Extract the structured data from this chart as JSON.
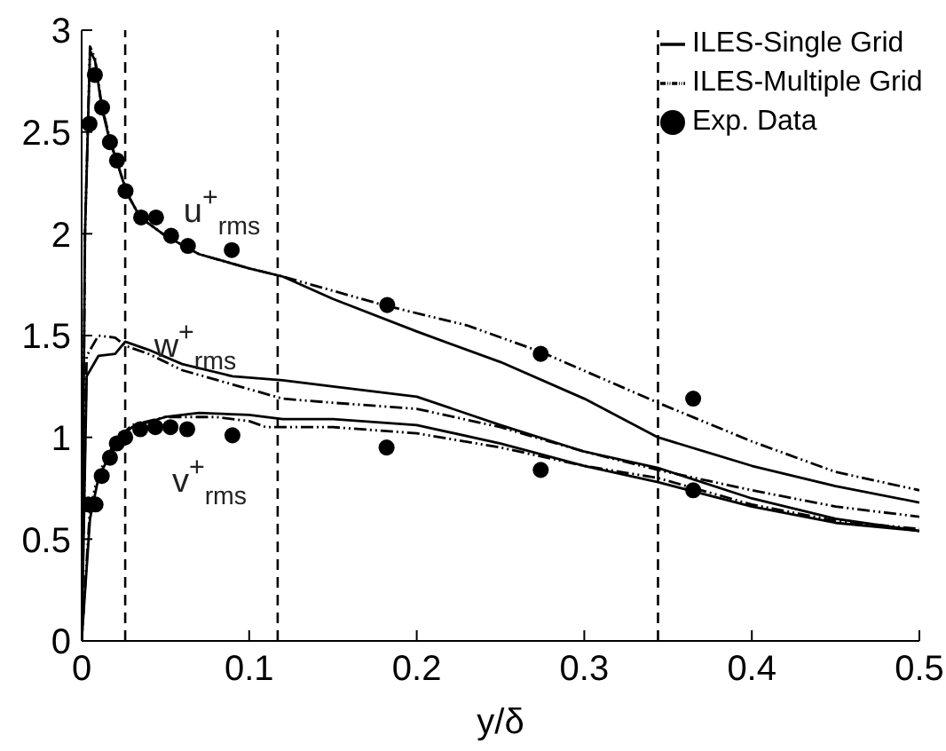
{
  "chart_data": {
    "type": "line",
    "xlabel": "y/δ",
    "xlim": [
      0,
      0.5
    ],
    "xticks": [
      0,
      0.1,
      0.2,
      0.3,
      0.4,
      0.5
    ],
    "ylim": [
      0,
      3
    ],
    "yticks": [
      0,
      0.5,
      1,
      1.5,
      2,
      2.5,
      3
    ],
    "grid": false,
    "legend": "top right",
    "series": [
      {
        "name": "ILES-Single Grid",
        "type": "line",
        "color": "#000000",
        "line_style": "solid",
        "marker": "none",
        "x": [
          0,
          0.002,
          0.005,
          0.008,
          0.012,
          0.017,
          0.022,
          0.027,
          0.035,
          0.05,
          0.07,
          0.1,
          0.12,
          0.15,
          0.2,
          0.25,
          0.3,
          0.344,
          0.4,
          0.45,
          0.5
        ],
        "values": [
          0,
          2.0,
          2.9,
          2.85,
          2.62,
          2.45,
          2.33,
          2.2,
          2.08,
          1.99,
          1.9,
          1.83,
          1.79,
          1.68,
          1.52,
          1.37,
          1.19,
          1.0,
          0.86,
          0.76,
          0.68
        ]
      },
      {
        "name": "ILES-Multiple Grid",
        "type": "line",
        "color": "#000000",
        "line_style": "dashed",
        "marker": "none",
        "x": [
          0,
          0.002,
          0.005,
          0.008,
          0.012,
          0.017,
          0.022,
          0.027,
          0.035,
          0.05,
          0.07,
          0.1,
          0.12,
          0.15,
          0.18,
          0.23,
          0.274,
          0.344,
          0.4,
          0.45,
          0.5
        ],
        "values": [
          0,
          2.0,
          2.92,
          2.86,
          2.63,
          2.46,
          2.33,
          2.2,
          2.08,
          1.99,
          1.9,
          1.83,
          1.79,
          1.72,
          1.65,
          1.55,
          1.42,
          1.17,
          0.98,
          0.83,
          0.74
        ]
      },
      {
        "name": "Exp. Data",
        "type": "scatter",
        "color": "#000000",
        "marker": "circle",
        "x": [
          0.0047,
          0.0079,
          0.0122,
          0.0169,
          0.0211,
          0.0262,
          0.0355,
          0.0444,
          0.0534,
          0.0634,
          0.0896,
          0.1824,
          0.274,
          0.365,
          0.004,
          0.0083,
          0.012,
          0.0169,
          0.021,
          0.026,
          0.035,
          0.044,
          0.053,
          0.063,
          0.09,
          0.182,
          0.274,
          0.365
        ],
        "values": [
          2.54,
          2.78,
          2.62,
          2.45,
          2.36,
          2.21,
          2.08,
          2.08,
          1.99,
          1.94,
          1.92,
          1.65,
          1.41,
          1.19,
          0.67,
          0.67,
          0.81,
          0.9,
          0.97,
          1.0,
          1.04,
          1.05,
          1.05,
          1.04,
          1.01,
          0.95,
          0.84,
          0.74
        ]
      },
      {
        "color": "#000000",
        "line_style": "solid",
        "marker": "none",
        "x": [
          0,
          0.003,
          0.01,
          0.02,
          0.026,
          0.04,
          0.06,
          0.09,
          0.12,
          0.15,
          0.2,
          0.25,
          0.3,
          0.344,
          0.4,
          0.45,
          0.5
        ],
        "values": [
          0,
          1.3,
          1.4,
          1.41,
          1.47,
          1.43,
          1.36,
          1.3,
          1.28,
          1.25,
          1.2,
          1.06,
          0.93,
          0.85,
          0.7,
          0.6,
          0.54
        ]
      },
      {
        "color": "#000000",
        "line_style": "dashed",
        "marker": "none",
        "x": [
          0,
          0.003,
          0.01,
          0.02,
          0.026,
          0.04,
          0.06,
          0.09,
          0.12,
          0.15,
          0.2,
          0.25,
          0.3,
          0.344,
          0.4,
          0.45,
          0.5
        ],
        "values": [
          0,
          1.4,
          1.5,
          1.49,
          1.45,
          1.41,
          1.33,
          1.26,
          1.19,
          1.17,
          1.14,
          1.05,
          0.93,
          0.84,
          0.74,
          0.66,
          0.61
        ]
      },
      {
        "color": "#000000",
        "line_style": "solid",
        "marker": "none",
        "x": [
          0,
          0.005,
          0.01,
          0.02,
          0.03,
          0.05,
          0.07,
          0.1,
          0.12,
          0.15,
          0.2,
          0.25,
          0.3,
          0.344,
          0.4,
          0.45,
          0.5
        ],
        "values": [
          0,
          0.6,
          0.8,
          0.97,
          1.05,
          1.1,
          1.12,
          1.11,
          1.09,
          1.09,
          1.06,
          0.97,
          0.86,
          0.78,
          0.66,
          0.58,
          0.54
        ]
      },
      {
        "color": "#000000",
        "line_style": "dashed",
        "marker": "none",
        "x": [
          0,
          0.005,
          0.01,
          0.02,
          0.03,
          0.05,
          0.08,
          0.1,
          0.11,
          0.15,
          0.2,
          0.25,
          0.3,
          0.344,
          0.4,
          0.45,
          0.5
        ],
        "values": [
          0,
          0.65,
          0.82,
          0.98,
          1.06,
          1.1,
          1.1,
          1.08,
          1.05,
          1.05,
          1.02,
          0.95,
          0.86,
          0.8,
          0.67,
          0.59,
          0.55
        ]
      }
    ],
    "ref_lines": [
      {
        "axis": "x",
        "value": 0.026,
        "color": "#000000",
        "line_style": "dashed"
      },
      {
        "axis": "x",
        "value": 0.117,
        "color": "#000000",
        "line_style": "dashed"
      },
      {
        "axis": "x",
        "value": 0.344,
        "color": "#000000",
        "line_style": "dashed"
      }
    ],
    "annotations": [
      "u$^{+}$$_{rms}$",
      "w$^{+}$$_{rms}$",
      "v$^{+}$$_{rms}$"
    ]
  }
}
